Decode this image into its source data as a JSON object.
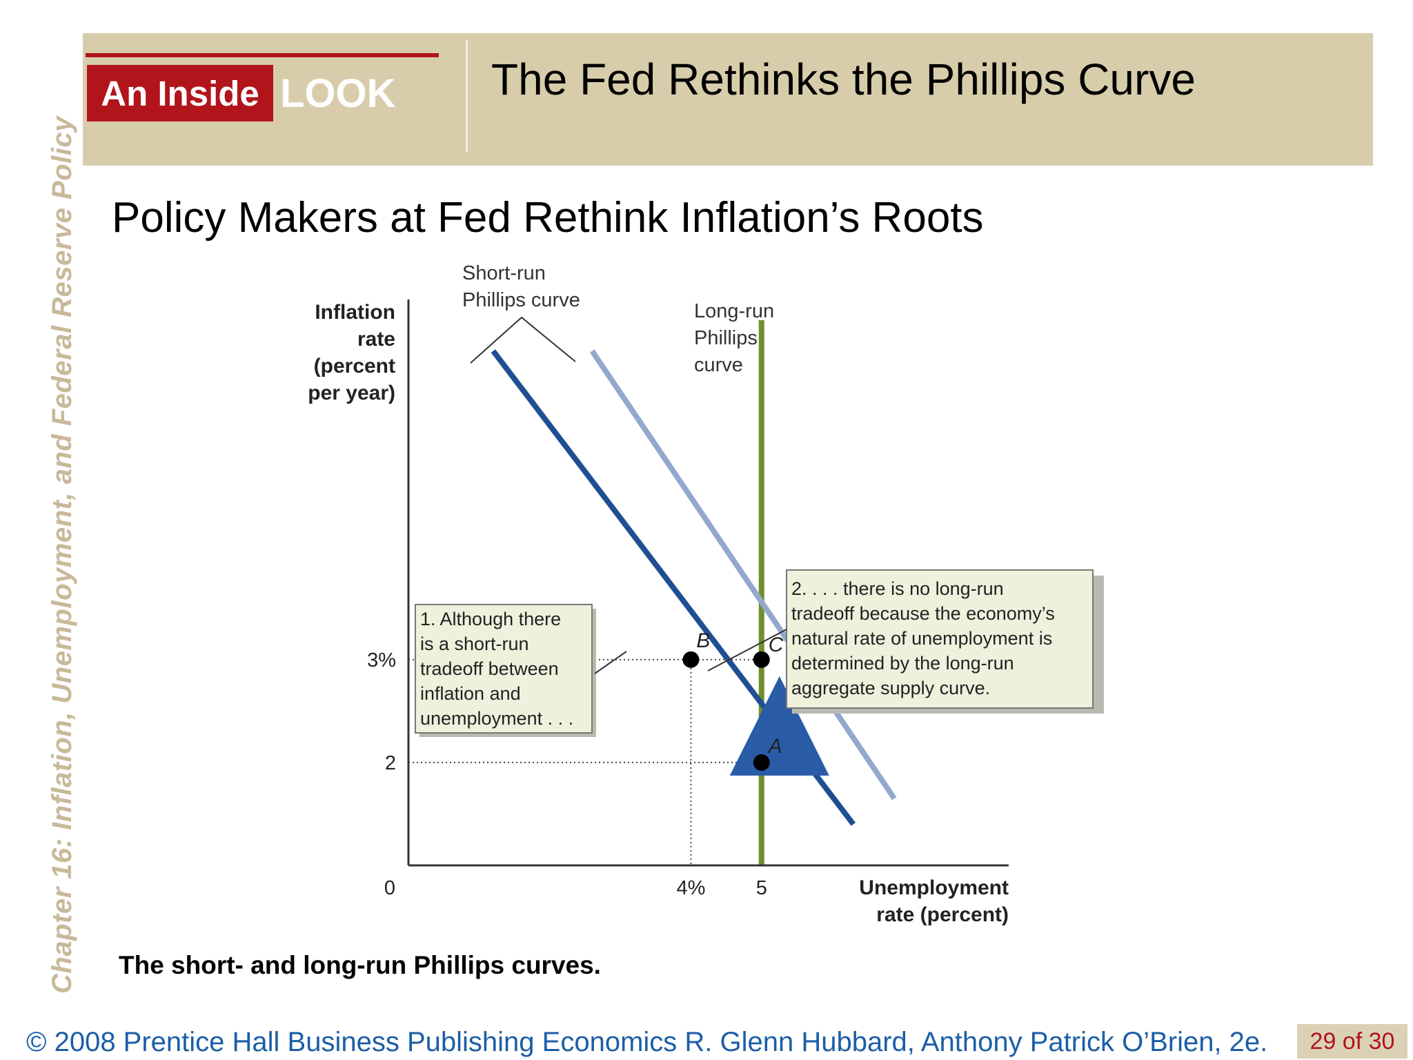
{
  "side_title": "Chapter 16:  Inflation, Unemployment, and Federal Reserve Policy",
  "header": {
    "badge_red": "An Inside",
    "badge_look": "LOOK",
    "title": "The Fed Rethinks the Phillips Curve"
  },
  "subtitle": "Policy Makers at Fed Rethink Inflation’s Roots",
  "caption": "The short- and long-run Phillips curves.",
  "footer": {
    "text": "© 2008 Prentice Hall Business Publishing   Economics  R. Glenn Hubbard, Anthony Patrick O’Brien, 2e.",
    "page": "29 of 30"
  },
  "colors": {
    "header_band": "#d7cdaa",
    "accent_red": "#b2141c",
    "footer_blue": "#1b5ea7",
    "srpc_dark": "#1f4f93",
    "srpc_light": "#93a8cc",
    "lrpc_green": "#6f8f2d",
    "callout_bg": "#eef1dc"
  },
  "chart_data": {
    "type": "line",
    "xlabel": [
      "Unemployment",
      "rate (percent)"
    ],
    "ylabel": [
      "Inflation",
      "rate",
      "(percent",
      "per year)"
    ],
    "origin_label": "0",
    "x_ticks": [
      {
        "value": 4,
        "label": "4%"
      },
      {
        "value": 5,
        "label": "5"
      }
    ],
    "y_ticks": [
      {
        "value": 3,
        "label": "3%"
      },
      {
        "value": 2,
        "label": "2"
      }
    ],
    "xlim": [
      0,
      8.5
    ],
    "ylim": [
      1,
      6.5
    ],
    "grid": false,
    "series": [
      {
        "key": "srpc1",
        "x": [
          1.2,
          6.3
        ],
        "y": [
          6.0,
          1.4
        ]
      },
      {
        "key": "srpc2",
        "x": [
          2.6,
          6.88
        ],
        "y": [
          6.0,
          1.65
        ]
      },
      {
        "key": "lrpc",
        "x": [
          5,
          5
        ],
        "y": [
          6.3,
          1.0
        ]
      }
    ],
    "points": [
      {
        "label": "B",
        "x": 4,
        "y": 3
      },
      {
        "label": "C",
        "x": 5,
        "y": 3
      },
      {
        "label": "A",
        "x": 5,
        "y": 2
      }
    ],
    "annotations": {
      "srpc_label": [
        "Short-run",
        "Phillips curve"
      ],
      "lrpc_label": [
        "Long-run",
        "Phillips",
        "curve"
      ],
      "callout1": [
        "1. Although there",
        "is a short-run",
        "tradeoff between",
        "inflation and",
        "unemployment . . ."
      ],
      "callout2": [
        "2.  . . . there is no long-run",
        "tradeoff because the economy’s",
        "natural rate of unemployment is",
        "determined by the long-run",
        "aggregate supply curve."
      ]
    }
  }
}
